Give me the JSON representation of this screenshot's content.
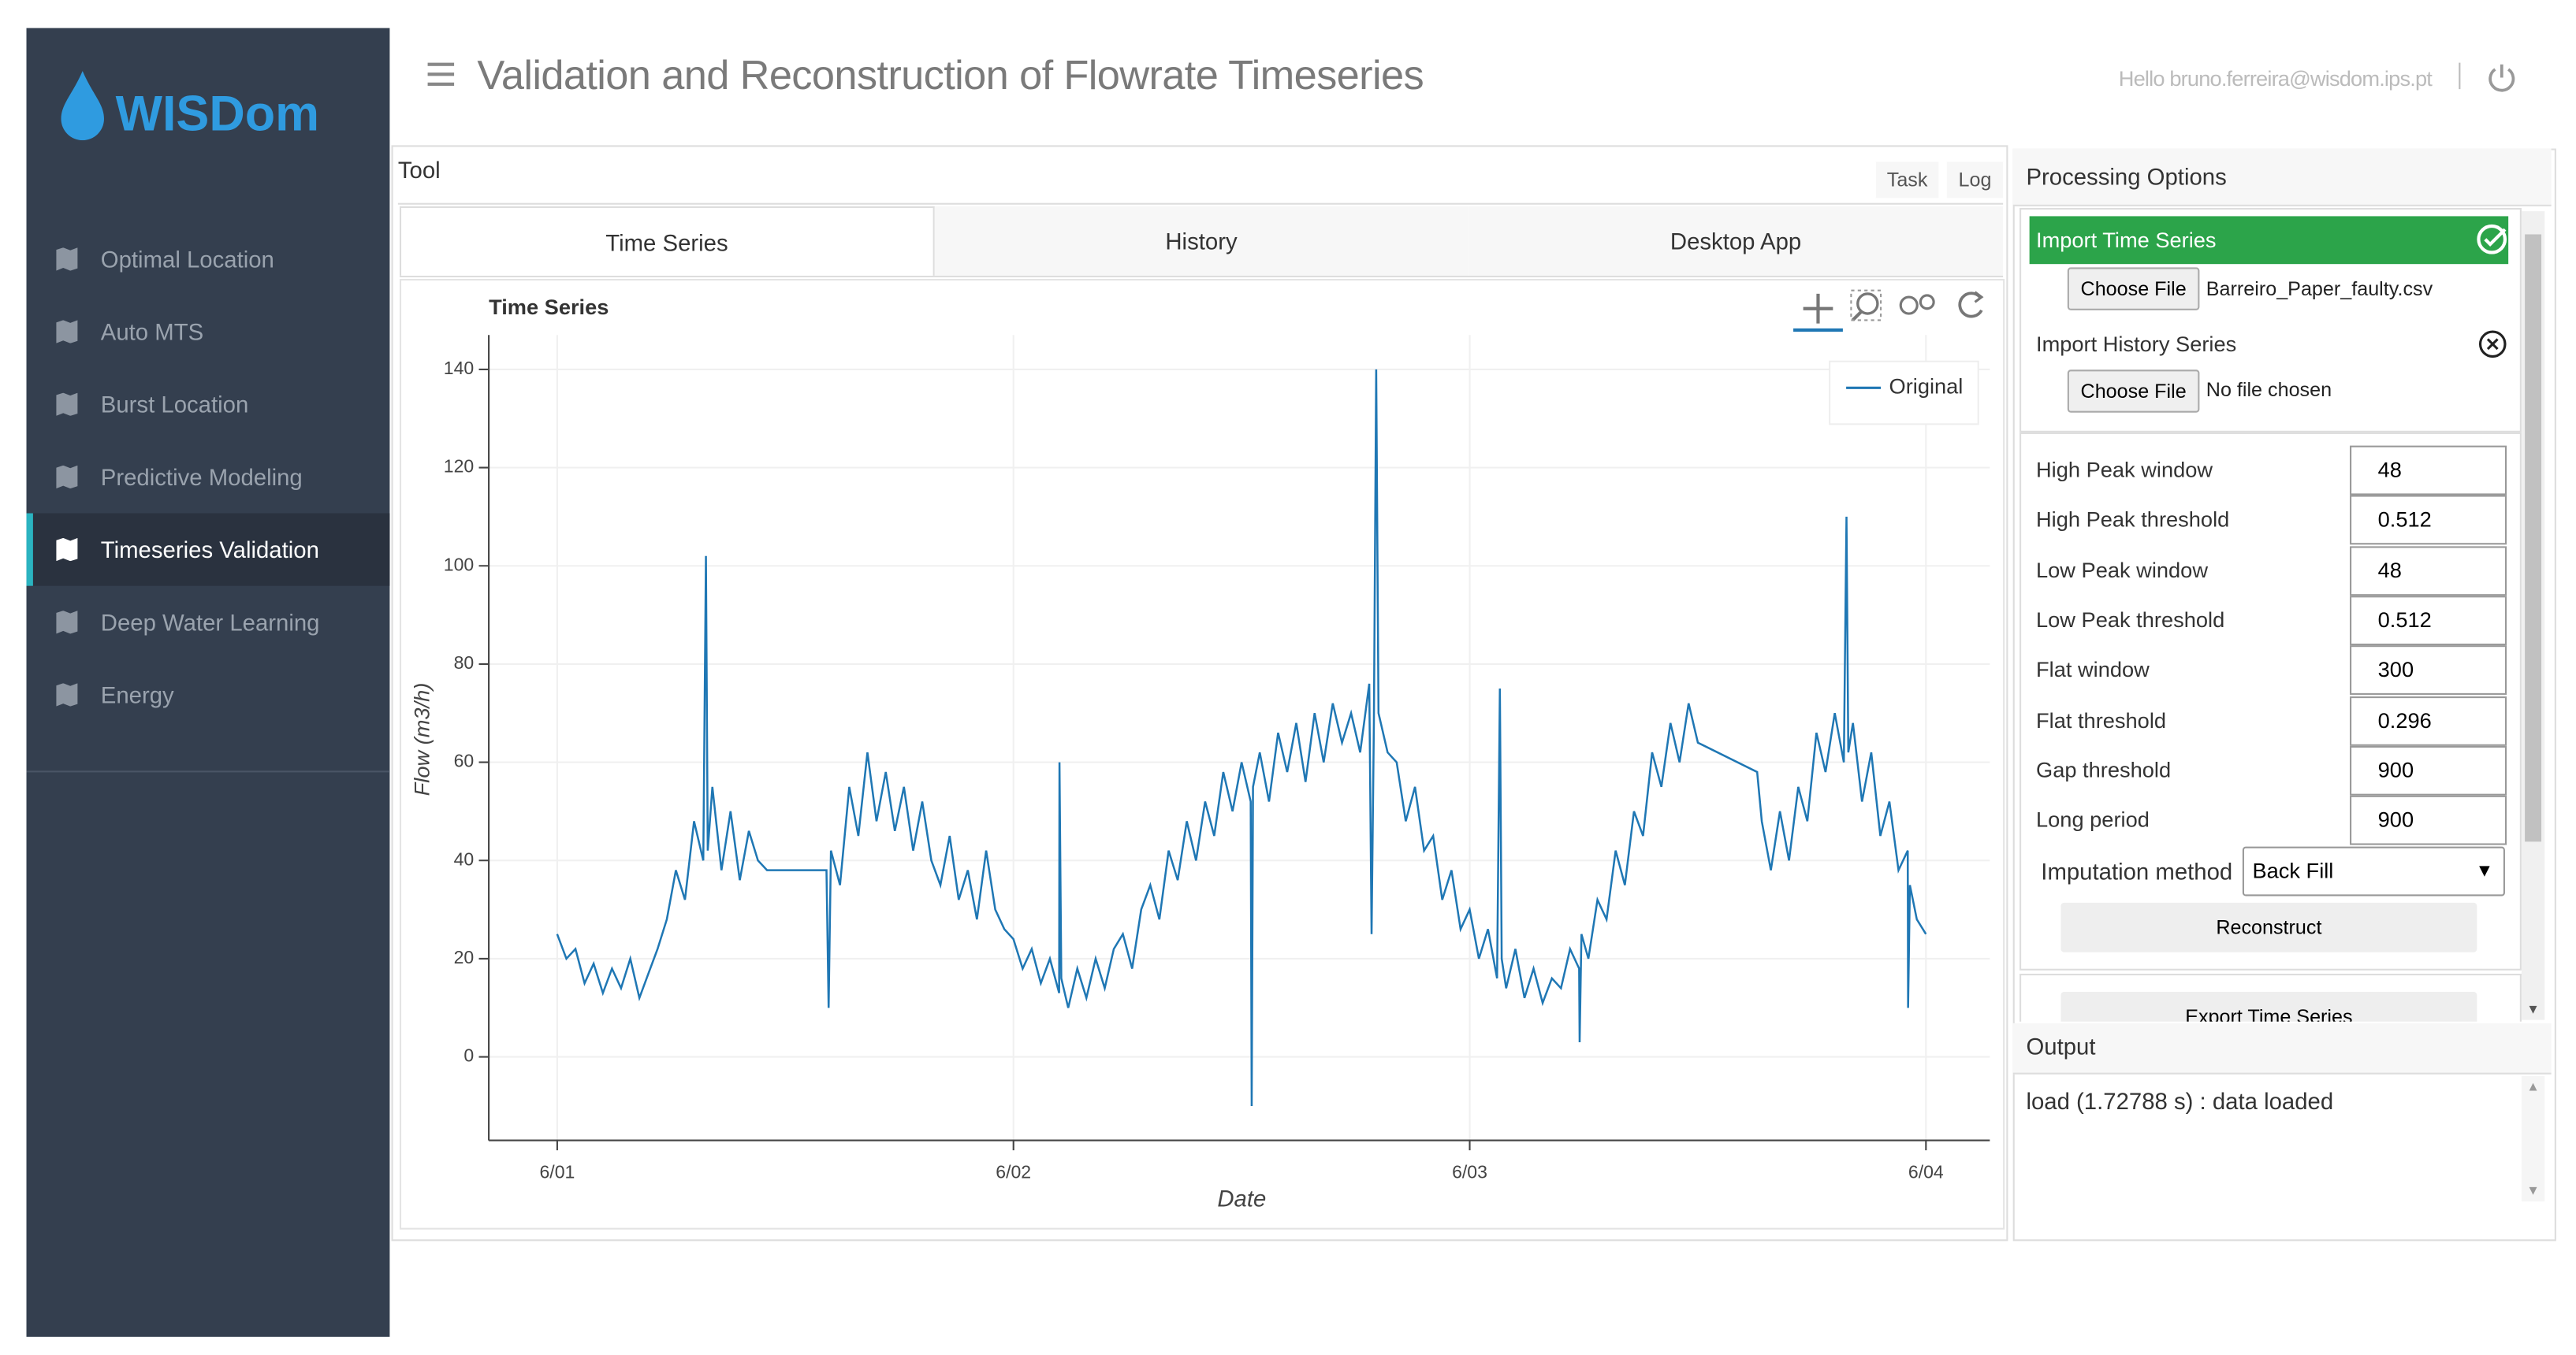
{
  "sidebar": {
    "brand": "WISDom",
    "items": [
      "Optimal Location",
      "Auto MTS",
      "Burst Location",
      "Predictive Modeling",
      "Timeseries Validation",
      "Deep Water Learning",
      "Energy"
    ],
    "active": 4
  },
  "header": {
    "title": "Validation and Reconstruction of Flowrate Timeseries",
    "user": "Hello bruno.ferreira@wisdom.ips.pt"
  },
  "tool": {
    "title": "Tool",
    "buttons": [
      "Task",
      "Log"
    ],
    "tabs": [
      "Time Series",
      "History",
      "Desktop App"
    ]
  },
  "chart_data": {
    "type": "line",
    "title": "Time Series",
    "x_label": "Date",
    "y_label": "Flow (m3/h)",
    "grid": true,
    "legend": "top-right",
    "xlim": [
      0.85,
      4.14
    ],
    "ylim": [
      -17,
      147
    ],
    "xticks": [
      {
        "value": 1,
        "label": "6/01"
      },
      {
        "value": 2,
        "label": "6/02"
      },
      {
        "value": 3,
        "label": "6/03"
      },
      {
        "value": 4,
        "label": "6/04"
      }
    ],
    "yticks": [
      0,
      20,
      40,
      60,
      80,
      100,
      120,
      140
    ],
    "x": [
      1.0,
      1.02,
      1.04,
      1.06,
      1.08,
      1.1,
      1.12,
      1.14,
      1.16,
      1.18,
      1.2,
      1.22,
      1.24,
      1.26,
      1.28,
      1.3,
      1.32,
      1.326,
      1.33,
      1.34,
      1.36,
      1.38,
      1.4,
      1.42,
      1.44,
      1.46,
      1.59,
      1.595,
      1.6,
      1.62,
      1.64,
      1.66,
      1.68,
      1.7,
      1.72,
      1.74,
      1.76,
      1.78,
      1.8,
      1.82,
      1.84,
      1.86,
      1.88,
      1.9,
      1.92,
      1.94,
      1.96,
      1.98,
      2.0,
      2.02,
      2.04,
      2.06,
      2.08,
      2.1,
      2.101,
      2.105,
      2.12,
      2.14,
      2.16,
      2.18,
      2.2,
      2.22,
      2.24,
      2.26,
      2.28,
      2.3,
      2.32,
      2.34,
      2.36,
      2.38,
      2.4,
      2.42,
      2.44,
      2.46,
      2.48,
      2.5,
      2.52,
      2.522,
      2.525,
      2.54,
      2.56,
      2.58,
      2.6,
      2.62,
      2.64,
      2.66,
      2.68,
      2.7,
      2.72,
      2.74,
      2.76,
      2.78,
      2.785,
      2.79,
      2.795,
      2.8,
      2.82,
      2.84,
      2.86,
      2.88,
      2.9,
      2.92,
      2.94,
      2.96,
      2.98,
      3.0,
      3.02,
      3.04,
      3.06,
      3.066,
      3.07,
      3.08,
      3.1,
      3.12,
      3.14,
      3.16,
      3.18,
      3.2,
      3.22,
      3.24,
      3.241,
      3.245,
      3.26,
      3.28,
      3.3,
      3.32,
      3.34,
      3.36,
      3.38,
      3.4,
      3.42,
      3.44,
      3.46,
      3.48,
      3.5,
      3.63,
      3.64,
      3.66,
      3.68,
      3.7,
      3.72,
      3.74,
      3.76,
      3.78,
      3.8,
      3.82,
      3.826,
      3.83,
      3.84,
      3.86,
      3.88,
      3.9,
      3.92,
      3.94,
      3.96,
      3.961,
      3.965,
      3.98,
      4.0
    ],
    "series": [
      {
        "name": "Original",
        "color": "#1f77b4",
        "values": [
          25,
          20,
          22,
          15,
          19,
          13,
          18,
          14,
          20,
          12,
          17,
          22,
          28,
          38,
          32,
          48,
          40,
          102,
          42,
          55,
          38,
          50,
          36,
          46,
          40,
          38,
          38,
          10,
          42,
          35,
          55,
          45,
          62,
          48,
          58,
          46,
          55,
          42,
          52,
          40,
          35,
          45,
          32,
          38,
          28,
          42,
          30,
          26,
          24,
          18,
          22,
          15,
          20,
          13,
          60,
          16,
          10,
          18,
          12,
          20,
          14,
          22,
          25,
          18,
          30,
          35,
          28,
          42,
          36,
          48,
          40,
          52,
          45,
          58,
          50,
          60,
          52,
          -10,
          55,
          62,
          52,
          66,
          58,
          68,
          56,
          70,
          60,
          72,
          64,
          70,
          62,
          76,
          25,
          68,
          140,
          70,
          62,
          60,
          48,
          55,
          42,
          45,
          32,
          38,
          26,
          30,
          20,
          26,
          16,
          75,
          20,
          14,
          22,
          12,
          18,
          11,
          16,
          14,
          22,
          18,
          3,
          25,
          20,
          32,
          28,
          42,
          35,
          50,
          45,
          62,
          55,
          68,
          60,
          72,
          64,
          58,
          48,
          38,
          50,
          40,
          55,
          48,
          66,
          58,
          70,
          60,
          110,
          62,
          68,
          52,
          62,
          45,
          52,
          38,
          42,
          10,
          35,
          28,
          25
        ]
      }
    ]
  },
  "processing": {
    "title": "Processing Options",
    "import_ts": {
      "label": "Import Time Series",
      "button": "Choose File",
      "file": "Barreiro_Paper_faulty.csv"
    },
    "import_hist": {
      "label": "Import History Series",
      "button": "Choose File",
      "file": "No file chosen"
    },
    "params": [
      {
        "label": "High Peak window",
        "value": "48"
      },
      {
        "label": "High Peak threshold",
        "value": "0.512"
      },
      {
        "label": "Low Peak window",
        "value": "48"
      },
      {
        "label": "Low Peak threshold",
        "value": "0.512"
      },
      {
        "label": "Flat window",
        "value": "300"
      },
      {
        "label": "Flat threshold",
        "value": "0.296"
      },
      {
        "label": "Gap threshold",
        "value": "900"
      },
      {
        "label": "Long period",
        "value": "900"
      }
    ],
    "imputation": {
      "label": "Imputation method",
      "value": "Back Fill"
    },
    "reconstruct": "Reconstruct",
    "export": "Export Time Series"
  },
  "output": {
    "title": "Output",
    "log": "load (1.72788 s) : data loaded"
  }
}
